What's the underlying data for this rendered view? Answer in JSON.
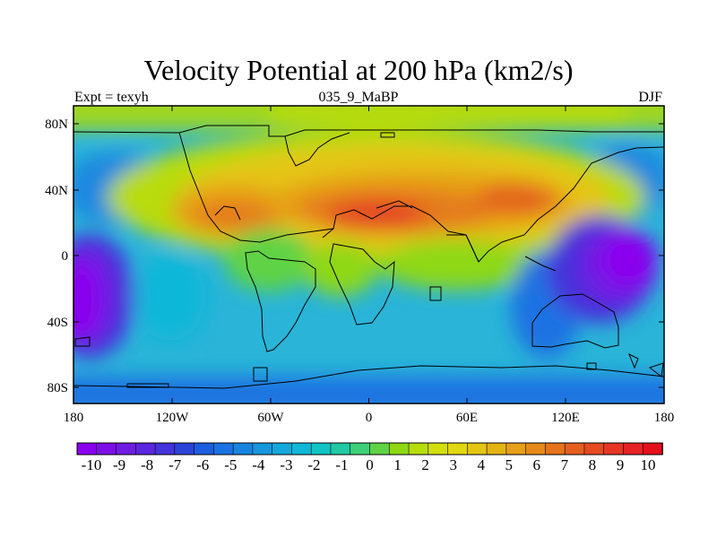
{
  "header": {
    "title": "Velocity Potential at 200 hPa (km2/s)",
    "left": "Expt = texyh",
    "center": "035_9_MaBP",
    "right": "DJF"
  },
  "axes": {
    "x_ticks": [
      "180",
      "120W",
      "60W",
      "0",
      "60E",
      "120E",
      "180"
    ],
    "y_ticks": [
      "80N",
      "40N",
      "0",
      "40S",
      "80S"
    ]
  },
  "colorbar": {
    "labels": [
      "-10",
      "-9",
      "-8",
      "-7",
      "-6",
      "-5",
      "-4",
      "-3",
      "-2",
      "-1",
      "0",
      "1",
      "2",
      "3",
      "4",
      "5",
      "6",
      "7",
      "8",
      "9",
      "10"
    ],
    "colors": [
      "#8a00ee",
      "#7d0ee7",
      "#6f1ce2",
      "#5b26df",
      "#4433da",
      "#2c43d8",
      "#1c5ce0",
      "#1a72e2",
      "#1785e0",
      "#1597dd",
      "#13a8dc",
      "#11b7d8",
      "#10c3c4",
      "#20c9a3",
      "#3dd078",
      "#5fd345",
      "#8ed813",
      "#b6dc0a",
      "#d3de0d",
      "#e0d811",
      "#e4c612",
      "#e4b314",
      "#e69f17",
      "#e58a1a",
      "#e4741c",
      "#e55f1f",
      "#e54a21",
      "#e63523",
      "#e62225",
      "#e40f1b"
    ]
  },
  "chart_data": {
    "type": "heatmap",
    "title": "Velocity Potential at 200 hPa (km2/s)",
    "subtitle": "035_9_MaBP",
    "left_string": "Expt = texyh",
    "right_string": "DJF",
    "units": "km2/s",
    "projection": "cylindrical equidistant",
    "xlim": [
      -180,
      180
    ],
    "ylim": [
      -90,
      90
    ],
    "x_ticks": [
      -180,
      -120,
      -60,
      0,
      60,
      120,
      180
    ],
    "y_ticks": [
      80,
      40,
      0,
      -40,
      -80
    ],
    "levels": [
      -10,
      -9,
      -8,
      -7,
      -6,
      -5,
      -4,
      -3,
      -2,
      -1,
      0,
      1,
      2,
      3,
      4,
      5,
      6,
      7,
      8,
      9,
      10
    ],
    "field_features": [
      {
        "name": "maximum",
        "lon": 10,
        "lat": 22,
        "value": 10
      },
      {
        "name": "maximum",
        "lon": 85,
        "lat": 33,
        "value": 9
      },
      {
        "name": "maximum",
        "lon": -85,
        "lat": 22,
        "value": 8
      },
      {
        "name": "minimum",
        "lon": 160,
        "lat": -10,
        "value": -10
      },
      {
        "name": "minimum",
        "lon": -175,
        "lat": -20,
        "value": -10
      }
    ],
    "colorbar": "horizontal, bottom"
  }
}
